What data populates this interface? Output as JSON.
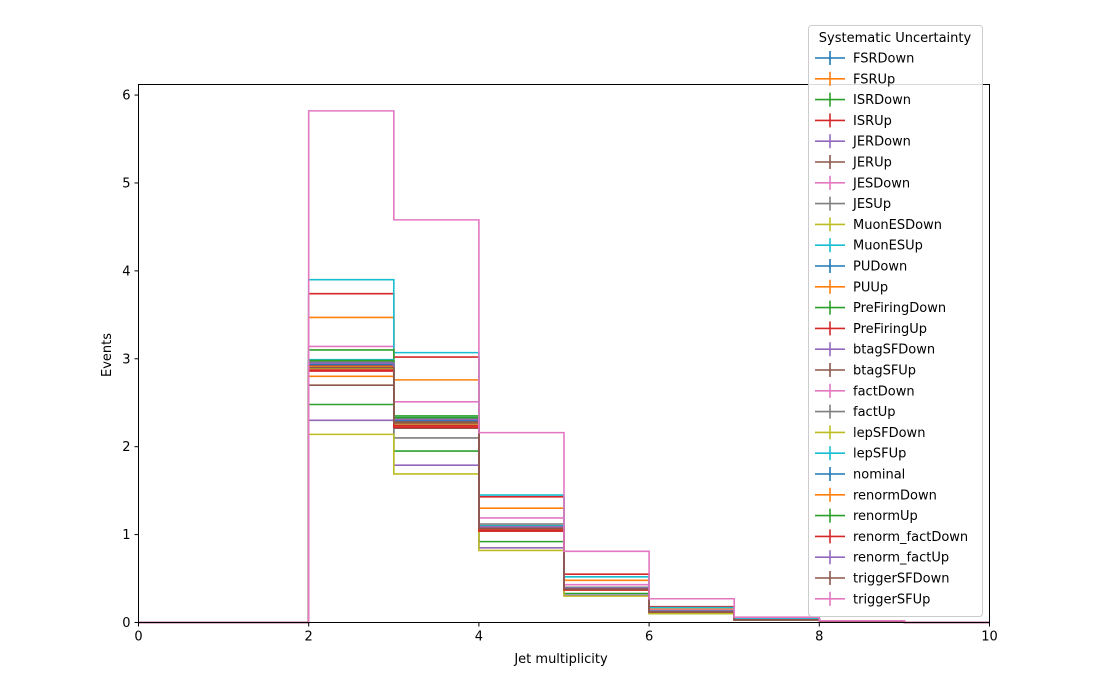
{
  "chart_data": {
    "type": "line",
    "step": "post",
    "xlabel": "Jet multiplicity",
    "ylabel": "Events",
    "xlim": [
      0,
      10
    ],
    "ylim": [
      0,
      6.12
    ],
    "x_ticks": [
      0,
      2,
      4,
      6,
      8,
      10
    ],
    "y_ticks": [
      0,
      1,
      2,
      3,
      4,
      5,
      6
    ],
    "bin_edges": [
      0,
      1,
      2,
      3,
      4,
      5,
      6,
      7,
      8,
      9,
      10
    ],
    "grid": false,
    "legend": {
      "title": "Systematic Uncertainty",
      "position": "top-right, outside plot area"
    },
    "series": [
      {
        "name": "FSRDown",
        "color": "#1f77b4",
        "values": [
          0,
          0,
          2.95,
          2.3,
          1.08,
          0.38,
          0.12,
          0.03,
          0.01,
          0.0
        ]
      },
      {
        "name": "FSRUp",
        "color": "#ff7f0e",
        "values": [
          0,
          0,
          3.47,
          2.76,
          1.3,
          0.48,
          0.15,
          0.04,
          0.01,
          0.0
        ]
      },
      {
        "name": "ISRDown",
        "color": "#2ca02c",
        "values": [
          0,
          0,
          2.48,
          1.95,
          0.92,
          0.33,
          0.1,
          0.03,
          0.01,
          0.0
        ]
      },
      {
        "name": "ISRUp",
        "color": "#d62728",
        "values": [
          0,
          0,
          3.74,
          3.02,
          1.43,
          0.55,
          0.18,
          0.05,
          0.01,
          0.0
        ]
      },
      {
        "name": "JERDown",
        "color": "#9467bd",
        "values": [
          0,
          0,
          2.3,
          1.79,
          0.85,
          0.31,
          0.1,
          0.03,
          0.01,
          0.0
        ]
      },
      {
        "name": "JERUp",
        "color": "#8c564b",
        "values": [
          0,
          0,
          2.7,
          2.21,
          1.04,
          0.38,
          0.12,
          0.03,
          0.01,
          0.0
        ]
      },
      {
        "name": "JESDown",
        "color": "#e377c2",
        "values": [
          0,
          0,
          3.14,
          2.51,
          1.19,
          0.43,
          0.14,
          0.04,
          0.01,
          0.0
        ]
      },
      {
        "name": "JESUp",
        "color": "#7f7f7f",
        "values": [
          0,
          0,
          2.9,
          2.1,
          1.12,
          0.4,
          0.13,
          0.03,
          0.01,
          0.0
        ]
      },
      {
        "name": "MuonESDown",
        "color": "#bcbd22",
        "values": [
          0,
          0,
          2.14,
          1.69,
          0.82,
          0.3,
          0.1,
          0.03,
          0.01,
          0.0
        ]
      },
      {
        "name": "MuonESUp",
        "color": "#17becf",
        "values": [
          0,
          0,
          3.9,
          3.07,
          1.45,
          0.52,
          0.17,
          0.04,
          0.01,
          0.0
        ]
      },
      {
        "name": "PUDown",
        "color": "#1f77b4",
        "values": [
          0,
          0,
          2.96,
          2.31,
          1.09,
          0.39,
          0.13,
          0.03,
          0.01,
          0.0
        ]
      },
      {
        "name": "PUUp",
        "color": "#ff7f0e",
        "values": [
          0,
          0,
          2.8,
          2.24,
          1.06,
          0.37,
          0.12,
          0.03,
          0.01,
          0.0
        ]
      },
      {
        "name": "PreFiringDown",
        "color": "#2ca02c",
        "values": [
          0,
          0,
          3.1,
          2.35,
          1.1,
          0.39,
          0.13,
          0.03,
          0.01,
          0.0
        ]
      },
      {
        "name": "PreFiringUp",
        "color": "#d62728",
        "values": [
          0,
          0,
          2.86,
          2.22,
          1.04,
          0.37,
          0.12,
          0.03,
          0.01,
          0.0
        ]
      },
      {
        "name": "btagSFDown",
        "color": "#9467bd",
        "values": [
          0,
          0,
          2.92,
          2.28,
          1.07,
          0.38,
          0.12,
          0.03,
          0.01,
          0.0
        ]
      },
      {
        "name": "btagSFUp",
        "color": "#8c564b",
        "values": [
          0,
          0,
          2.93,
          2.29,
          1.08,
          0.38,
          0.12,
          0.03,
          0.01,
          0.0
        ]
      },
      {
        "name": "factDown",
        "color": "#e377c2",
        "values": [
          0,
          0,
          2.88,
          2.25,
          1.06,
          0.37,
          0.12,
          0.03,
          0.01,
          0.0
        ]
      },
      {
        "name": "factUp",
        "color": "#7f7f7f",
        "values": [
          0,
          0,
          2.97,
          2.32,
          1.1,
          0.39,
          0.13,
          0.03,
          0.01,
          0.0
        ]
      },
      {
        "name": "lepSFDown",
        "color": "#bcbd22",
        "values": [
          0,
          0,
          2.89,
          2.26,
          1.06,
          0.37,
          0.12,
          0.03,
          0.01,
          0.0
        ]
      },
      {
        "name": "lepSFUp",
        "color": "#17becf",
        "values": [
          0,
          0,
          2.99,
          2.33,
          1.1,
          0.39,
          0.13,
          0.03,
          0.01,
          0.0
        ]
      },
      {
        "name": "nominal",
        "color": "#1f77b4",
        "values": [
          0,
          0,
          2.94,
          2.3,
          1.08,
          0.38,
          0.12,
          0.03,
          0.01,
          0.0
        ]
      },
      {
        "name": "renormDown",
        "color": "#ff7f0e",
        "values": [
          0,
          0,
          2.91,
          2.27,
          1.07,
          0.38,
          0.12,
          0.03,
          0.01,
          0.0
        ]
      },
      {
        "name": "renormUp",
        "color": "#2ca02c",
        "values": [
          0,
          0,
          2.98,
          2.33,
          1.09,
          0.39,
          0.13,
          0.03,
          0.01,
          0.0
        ]
      },
      {
        "name": "renorm_factDown",
        "color": "#d62728",
        "values": [
          0,
          0,
          2.87,
          2.24,
          1.05,
          0.37,
          0.12,
          0.03,
          0.01,
          0.0
        ]
      },
      {
        "name": "renorm_factUp",
        "color": "#9467bd",
        "values": [
          0,
          0,
          2.95,
          2.31,
          1.09,
          0.39,
          0.13,
          0.03,
          0.01,
          0.0
        ]
      },
      {
        "name": "triggerSFDown",
        "color": "#8c564b",
        "values": [
          0,
          0,
          2.9,
          2.27,
          1.07,
          0.38,
          0.12,
          0.03,
          0.01,
          0.0
        ]
      },
      {
        "name": "triggerSFUp",
        "color": "#e377c2",
        "values": [
          0,
          0,
          5.82,
          4.58,
          2.16,
          0.81,
          0.27,
          0.06,
          0.02,
          0.0
        ]
      }
    ]
  }
}
